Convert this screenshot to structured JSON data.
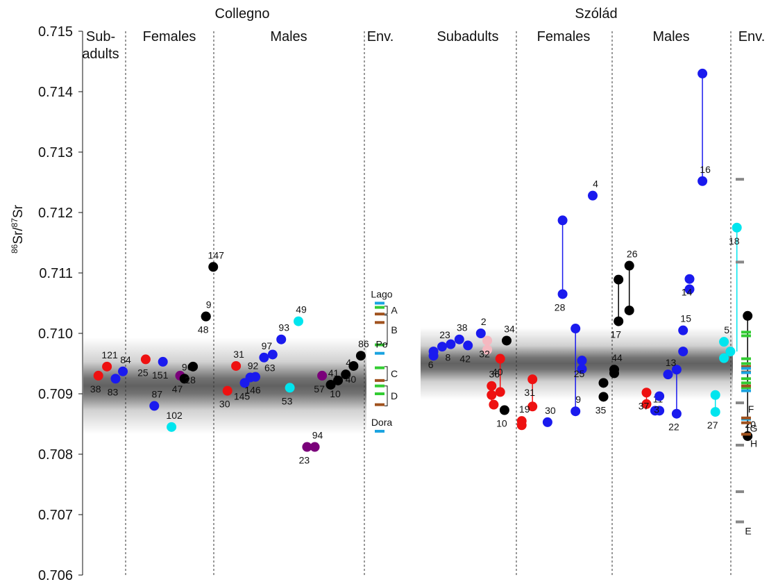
{
  "chart_data": {
    "type": "scatter",
    "ylabel": "86Sr/87Sr",
    "ylabel_parts": {
      "sup1": "86",
      "base1": "Sr/",
      "sup2": "87",
      "base2": "Sr"
    },
    "ylim": [
      0.706,
      0.715
    ],
    "yticks": [
      "0.706",
      "0.707",
      "0.708",
      "0.709",
      "0.710",
      "0.711",
      "0.712",
      "0.713",
      "0.714",
      "0.715"
    ],
    "colors": {
      "subadult": "#ee1111",
      "female": "#1a1aee",
      "male": "#000000",
      "unknown": "#7a007a",
      "other": "#00e5ee",
      "pink": "#f5b8c0",
      "env_blue": "#1aa3e0",
      "env_green": "#33cc33",
      "env_brown": "#a0521e",
      "env_gray": "#888888"
    },
    "sites": [
      {
        "name": "Collegno",
        "groups": [
          "Sub-\nadults",
          "Females",
          "Males",
          "Env."
        ],
        "band": {
          "center": 0.70913,
          "inner_half": 0.00028,
          "outer_half": 0.0008
        },
        "points": [
          {
            "label": "38",
            "x": 0.35,
            "y": 0.7093,
            "c": "subadult"
          },
          {
            "label": "121",
            "x": 0.55,
            "y": 0.70945,
            "c": "subadult"
          },
          {
            "label": "83",
            "x": 0.75,
            "y": 0.70925,
            "c": "female"
          },
          {
            "label": "84",
            "x": 0.92,
            "y": 0.70937,
            "c": "female"
          },
          {
            "label": "25",
            "x": 1.45,
            "y": 0.70957,
            "c": "subadult"
          },
          {
            "label": "87",
            "x": 1.65,
            "y": 0.7088,
            "c": "female"
          },
          {
            "label": "151",
            "x": 1.85,
            "y": 0.70953,
            "c": "female"
          },
          {
            "label": "102",
            "x": 2.05,
            "y": 0.70845,
            "c": "other"
          },
          {
            "label": "47",
            "x": 2.25,
            "y": 0.7093,
            "c": "unknown"
          },
          {
            "label": "90",
            "x": 2.35,
            "y": 0.70925,
            "c": "male"
          },
          {
            "label": "28",
            "x": 2.55,
            "y": 0.70945,
            "c": "male"
          },
          {
            "label": "9",
            "x": 2.85,
            "y": 0.71028,
            "c": "male"
          },
          {
            "label": "48",
            "x": 2.85,
            "y": 0.71028,
            "c": "male"
          },
          {
            "label": "147",
            "x": 3.02,
            "y": 0.7111,
            "c": "male"
          },
          {
            "label": "30",
            "x": 3.35,
            "y": 0.70905,
            "c": "subadult"
          },
          {
            "label": "31",
            "x": 3.55,
            "y": 0.70946,
            "c": "subadult"
          },
          {
            "label": "145",
            "x": 3.75,
            "y": 0.70918,
            "c": "female"
          },
          {
            "label": "92",
            "x": 3.88,
            "y": 0.70927,
            "c": "female"
          },
          {
            "label": "146",
            "x": 4.0,
            "y": 0.70928,
            "c": "female"
          },
          {
            "label": "97",
            "x": 4.2,
            "y": 0.7096,
            "c": "female"
          },
          {
            "label": "63",
            "x": 4.4,
            "y": 0.70965,
            "c": "female"
          },
          {
            "label": "93",
            "x": 4.6,
            "y": 0.7099,
            "c": "female"
          },
          {
            "label": "53",
            "x": 4.8,
            "y": 0.7091,
            "c": "other"
          },
          {
            "label": "49",
            "x": 5.0,
            "y": 0.7102,
            "c": "other"
          },
          {
            "label": "23",
            "x": 5.2,
            "y": 0.70812,
            "c": "unknown"
          },
          {
            "label": "94",
            "x": 5.38,
            "y": 0.70812,
            "c": "unknown"
          },
          {
            "label": "57",
            "x": 5.55,
            "y": 0.7093,
            "c": "unknown"
          },
          {
            "label": "41",
            "x": 5.75,
            "y": 0.70915,
            "c": "male"
          },
          {
            "label": "10",
            "x": 5.92,
            "y": 0.70922,
            "c": "male"
          },
          {
            "label": "4",
            "x": 6.1,
            "y": 0.70932,
            "c": "male"
          },
          {
            "label": "40",
            "x": 6.28,
            "y": 0.70946,
            "c": "male"
          },
          {
            "label": "86",
            "x": 6.45,
            "y": 0.70963,
            "c": "male"
          }
        ],
        "env": [
          {
            "y": 0.7105,
            "c": "env_blue",
            "label": "Lago"
          },
          {
            "y": 0.71043,
            "c": "env_green"
          },
          {
            "y": 0.71032,
            "c": "env_brown"
          },
          {
            "y": 0.71018,
            "c": "env_brown"
          },
          {
            "y": 0.70981,
            "c": "env_green"
          },
          {
            "y": 0.70967,
            "c": "env_blue",
            "label": "Po"
          },
          {
            "y": 0.70943,
            "c": "env_green"
          },
          {
            "y": 0.70922,
            "c": "env_brown"
          },
          {
            "y": 0.70913,
            "c": "env_green"
          },
          {
            "y": 0.709,
            "c": "env_green"
          },
          {
            "y": 0.70882,
            "c": "env_brown"
          },
          {
            "y": 0.70838,
            "c": "env_blue",
            "label": "Dora"
          }
        ],
        "brackets": [
          {
            "label": "A",
            "top": 0.71045,
            "bottom": 0.71032
          },
          {
            "label": "B",
            "top": 0.7103,
            "bottom": 0.70982
          },
          {
            "label": "C",
            "top": 0.70945,
            "bottom": 0.70922
          },
          {
            "label": "D",
            "top": 0.70913,
            "bottom": 0.7088
          }
        ]
      },
      {
        "name": "Szólád",
        "groups": [
          "Subadults",
          "Females",
          "Males",
          "Env."
        ],
        "band": {
          "center": 0.7095,
          "inner_half": 0.0003,
          "outer_half": 0.0006
        },
        "points": [
          {
            "label": "6",
            "x": 0.3,
            "y": 0.7097,
            "c": "female"
          },
          {
            "label": "23",
            "x": 0.5,
            "y": 0.70978,
            "c": "female"
          },
          {
            "label": "8",
            "x": 0.7,
            "y": 0.70982,
            "c": "female"
          },
          {
            "label": "38",
            "x": 0.9,
            "y": 0.7099,
            "c": "female"
          },
          {
            "label": "42",
            "x": 1.1,
            "y": 0.7098,
            "c": "female"
          },
          {
            "label": "2",
            "x": 1.4,
            "y": 0.71,
            "c": "female"
          },
          {
            "label": "32",
            "x": 1.55,
            "y": 0.70988,
            "c": "pink"
          },
          {
            "label": "34",
            "x": 2.0,
            "y": 0.70988,
            "c": "male"
          },
          {
            "label": "40",
            "x": 1.85,
            "y": 0.70958,
            "c": "subadult"
          },
          {
            "label": "36",
            "x": 1.65,
            "y": 0.70913,
            "c": "subadult"
          },
          {
            "label": "10",
            "x": 1.95,
            "y": 0.70873,
            "c": "male"
          },
          {
            "label": "19",
            "x": 2.35,
            "y": 0.70855,
            "c": "subadult"
          },
          {
            "label": "31",
            "x": 2.6,
            "y": 0.70924,
            "c": "subadult"
          },
          {
            "label": "30",
            "x": 2.95,
            "y": 0.70853,
            "c": "female"
          },
          {
            "label": "28",
            "x": 3.3,
            "y": 0.71065,
            "c": "female"
          },
          {
            "label": "9",
            "x": 3.6,
            "y": 0.70871,
            "c": "female"
          },
          {
            "label": "25",
            "x": 3.75,
            "y": 0.70955,
            "c": "female"
          },
          {
            "label": "4",
            "x": 4.0,
            "y": 0.71228,
            "c": "female"
          },
          {
            "label": "35",
            "x": 4.25,
            "y": 0.70895,
            "c": "male"
          },
          {
            "label": "44",
            "x": 4.5,
            "y": 0.7094,
            "c": "male"
          },
          {
            "label": "17",
            "x": 4.6,
            "y": 0.7102,
            "c": "male"
          },
          {
            "label": "26",
            "x": 4.85,
            "y": 0.71112,
            "c": "male"
          },
          {
            "label": "37",
            "x": 5.25,
            "y": 0.70902,
            "c": "subadult"
          },
          {
            "label": "11",
            "x": 5.45,
            "y": 0.70872,
            "c": "female"
          },
          {
            "label": "3",
            "x": 5.55,
            "y": 0.70896,
            "c": "female"
          },
          {
            "label": "13",
            "x": 5.75,
            "y": 0.70932,
            "c": "female"
          },
          {
            "label": "22",
            "x": 5.95,
            "y": 0.70867,
            "c": "female"
          },
          {
            "label": "15",
            "x": 6.1,
            "y": 0.71005,
            "c": "female"
          },
          {
            "label": "14",
            "x": 6.25,
            "y": 0.7109,
            "c": "female"
          },
          {
            "label": "16",
            "x": 6.55,
            "y": 0.71252,
            "c": "female"
          },
          {
            "label": "27",
            "x": 6.85,
            "y": 0.7087,
            "c": "other"
          },
          {
            "label": "5",
            "x": 7.05,
            "y": 0.70986,
            "c": "other"
          },
          {
            "label": "18",
            "x": 7.35,
            "y": 0.71175,
            "c": "other"
          },
          {
            "label": "20",
            "x": 7.6,
            "y": 0.7083,
            "c": "male"
          }
        ],
        "extra_points": [
          {
            "x": 0.3,
            "y": 0.70963,
            "c": "female"
          },
          {
            "x": 1.55,
            "y": 0.70973,
            "c": "pink"
          },
          {
            "x": 1.85,
            "y": 0.70903,
            "c": "subadult"
          },
          {
            "x": 1.65,
            "y": 0.70898,
            "c": "subadult"
          },
          {
            "x": 1.7,
            "y": 0.70882,
            "c": "subadult"
          },
          {
            "x": 2.35,
            "y": 0.70848,
            "c": "subadult"
          },
          {
            "x": 2.6,
            "y": 0.70879,
            "c": "subadult"
          },
          {
            "x": 3.3,
            "y": 0.71187,
            "c": "female"
          },
          {
            "x": 3.6,
            "y": 0.71008,
            "c": "female"
          },
          {
            "x": 3.75,
            "y": 0.70941,
            "c": "female"
          },
          {
            "x": 4.25,
            "y": 0.70918,
            "c": "male"
          },
          {
            "x": 4.5,
            "y": 0.70934,
            "c": "male"
          },
          {
            "x": 4.6,
            "y": 0.71089,
            "c": "male"
          },
          {
            "x": 4.85,
            "y": 0.71038,
            "c": "male"
          },
          {
            "x": 5.25,
            "y": 0.70883,
            "c": "subadult"
          },
          {
            "x": 5.55,
            "y": 0.70872,
            "c": "female"
          },
          {
            "x": 5.95,
            "y": 0.7094,
            "c": "female"
          },
          {
            "x": 6.1,
            "y": 0.7097,
            "c": "female"
          },
          {
            "x": 6.25,
            "y": 0.71073,
            "c": "female"
          },
          {
            "x": 6.55,
            "y": 0.7143,
            "c": "female"
          },
          {
            "x": 6.85,
            "y": 0.70898,
            "c": "other"
          },
          {
            "x": 7.05,
            "y": 0.70959,
            "c": "other"
          },
          {
            "x": 7.2,
            "y": 0.7097,
            "c": "other"
          },
          {
            "x": 7.6,
            "y": 0.71029,
            "c": "male"
          }
        ],
        "links": [
          {
            "x": 1.85,
            "y1": 0.70958,
            "y2": 0.70903,
            "c": "subadult"
          },
          {
            "x": 1.65,
            "y1": 0.70913,
            "y2": 0.70882,
            "c": "subadult"
          },
          {
            "x": 2.6,
            "y1": 0.70924,
            "y2": 0.70879,
            "c": "subadult"
          },
          {
            "x": 3.3,
            "y1": 0.71187,
            "y2": 0.71065,
            "c": "female"
          },
          {
            "x": 3.6,
            "y1": 0.71008,
            "y2": 0.70871,
            "c": "female"
          },
          {
            "x": 4.6,
            "y1": 0.71089,
            "y2": 0.7102,
            "c": "male"
          },
          {
            "x": 4.85,
            "y1": 0.71112,
            "y2": 0.71038,
            "c": "male"
          },
          {
            "x": 5.25,
            "y1": 0.70902,
            "y2": 0.70883,
            "c": "subadult"
          },
          {
            "x": 5.95,
            "y1": 0.7094,
            "y2": 0.70867,
            "c": "female"
          },
          {
            "x": 6.55,
            "y1": 0.7143,
            "y2": 0.71252,
            "c": "female"
          },
          {
            "x": 6.85,
            "y1": 0.70898,
            "y2": 0.7087,
            "c": "other"
          },
          {
            "x": 7.35,
            "y1": 0.71175,
            "y2": 0.7097,
            "c": "other"
          },
          {
            "x": 7.6,
            "y1": 0.71029,
            "y2": 0.7083,
            "c": "male"
          }
        ],
        "env": [
          {
            "y": 0.71255,
            "c": "env_gray"
          },
          {
            "y": 0.71118,
            "c": "env_gray"
          },
          {
            "y": 0.71002,
            "c": "env_green"
          },
          {
            "y": 0.70996,
            "c": "env_green"
          },
          {
            "y": 0.70958,
            "c": "env_green"
          },
          {
            "y": 0.7095,
            "c": "env_green"
          },
          {
            "y": 0.70945,
            "c": "env_brown"
          },
          {
            "y": 0.70936,
            "c": "env_brown"
          },
          {
            "y": 0.70942,
            "c": "env_blue"
          },
          {
            "y": 0.70935,
            "c": "env_blue"
          },
          {
            "y": 0.70925,
            "c": "env_green"
          },
          {
            "y": 0.70918,
            "c": "env_green"
          },
          {
            "y": 0.7091,
            "c": "env_green"
          },
          {
            "y": 0.70913,
            "c": "env_brown"
          },
          {
            "y": 0.70905,
            "c": "env_blue"
          },
          {
            "y": 0.70885,
            "c": "env_gray"
          },
          {
            "y": 0.70858,
            "c": "env_blue",
            "label": "G"
          },
          {
            "y": 0.7086,
            "c": "env_brown"
          },
          {
            "y": 0.70852,
            "c": "env_brown"
          },
          {
            "y": 0.70833,
            "c": "env_brown",
            "label": "H"
          },
          {
            "y": 0.70815,
            "c": "env_gray"
          },
          {
            "y": 0.70738,
            "c": "env_gray"
          },
          {
            "y": 0.70688,
            "c": "env_gray",
            "label": "E"
          }
        ],
        "env_labels": [
          {
            "label": "F",
            "y": 0.70875
          }
        ]
      }
    ]
  }
}
